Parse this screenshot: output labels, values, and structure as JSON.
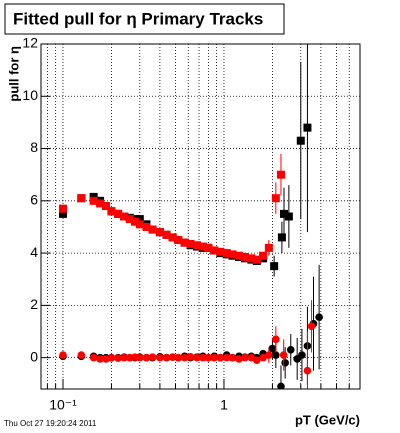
{
  "chart_data": {
    "type": "scatter",
    "title": "Fitted pull for η  Primary Tracks",
    "ylabel": "pull for η",
    "xlabel": "pT (GeV/c)",
    "footer": "Thu Oct 27 19:20:24 2011",
    "xscale": "log",
    "xlim": [
      0.073,
      7
    ],
    "ylim": [
      -1.2,
      12
    ],
    "xticks": [
      {
        "value": 0.1,
        "label": "10⁻¹"
      },
      1
    ],
    "xminor_ticks": [
      0.08,
      0.09,
      0.2,
      0.3,
      0.4,
      0.5,
      0.6,
      0.7,
      0.8,
      0.9,
      2,
      3,
      4,
      5,
      6,
      7
    ],
    "yticks": [
      0,
      2,
      4,
      6,
      8,
      10,
      12
    ],
    "grid": true,
    "series": [
      {
        "marker": "square",
        "color": "#000000",
        "x": [
          0.1,
          0.13,
          0.155,
          0.17,
          0.185,
          0.2,
          0.22,
          0.24,
          0.26,
          0.28,
          0.3,
          0.33,
          0.36,
          0.4,
          0.44,
          0.48,
          0.52,
          0.57,
          0.62,
          0.68,
          0.74,
          0.8,
          0.87,
          0.95,
          1.04,
          1.13,
          1.24,
          1.35,
          1.48,
          1.6,
          1.75,
          2.05,
          2.29,
          2.36,
          2.53,
          3.0,
          3.3
        ],
        "values": [
          5.5,
          6.1,
          6.15,
          6.0,
          5.8,
          5.6,
          5.5,
          5.4,
          5.35,
          5.3,
          5.3,
          5.1,
          4.9,
          4.8,
          4.7,
          4.6,
          4.5,
          4.4,
          4.3,
          4.25,
          4.2,
          4.2,
          4.1,
          4.0,
          3.95,
          3.9,
          3.85,
          3.8,
          3.75,
          3.7,
          3.8,
          3.5,
          4.6,
          5.5,
          5.4,
          8.3,
          8.8
        ],
        "errors": [
          0.1,
          0.1,
          0.1,
          0.1,
          0.1,
          0.1,
          0.1,
          0.1,
          0.1,
          0.1,
          0.1,
          0.1,
          0.1,
          0.1,
          0.1,
          0.1,
          0.1,
          0.1,
          0.1,
          0.1,
          0.1,
          0.1,
          0.1,
          0.1,
          0.1,
          0.1,
          0.1,
          0.1,
          0.1,
          0.1,
          0.1,
          0.4,
          0.6,
          1.0,
          1.2,
          3.0,
          4.0
        ]
      },
      {
        "marker": "square",
        "color": "#ff0000",
        "x": [
          0.1,
          0.13,
          0.155,
          0.17,
          0.185,
          0.2,
          0.22,
          0.24,
          0.26,
          0.28,
          0.3,
          0.33,
          0.36,
          0.4,
          0.44,
          0.48,
          0.52,
          0.57,
          0.62,
          0.68,
          0.74,
          0.8,
          0.87,
          0.95,
          1.04,
          1.13,
          1.24,
          1.35,
          1.48,
          1.6,
          1.75,
          1.9,
          2.1,
          2.26
        ],
        "values": [
          5.7,
          6.1,
          6.0,
          5.9,
          5.8,
          5.6,
          5.5,
          5.4,
          5.3,
          5.2,
          5.1,
          5.0,
          4.9,
          4.8,
          4.7,
          4.6,
          4.5,
          4.4,
          4.35,
          4.3,
          4.25,
          4.2,
          4.1,
          4.05,
          4.0,
          3.95,
          3.9,
          3.85,
          3.8,
          3.75,
          3.9,
          4.2,
          6.1,
          7.0
        ],
        "errors": [
          0.1,
          0.1,
          0.1,
          0.1,
          0.1,
          0.1,
          0.1,
          0.1,
          0.1,
          0.1,
          0.1,
          0.1,
          0.1,
          0.1,
          0.1,
          0.1,
          0.1,
          0.1,
          0.1,
          0.1,
          0.1,
          0.1,
          0.1,
          0.1,
          0.1,
          0.1,
          0.1,
          0.1,
          0.1,
          0.1,
          0.1,
          0.3,
          0.6,
          0.8
        ]
      },
      {
        "marker": "circle",
        "color": "#000000",
        "x": [
          0.1,
          0.13,
          0.155,
          0.17,
          0.185,
          0.2,
          0.22,
          0.24,
          0.26,
          0.28,
          0.3,
          0.33,
          0.36,
          0.4,
          0.44,
          0.48,
          0.52,
          0.57,
          0.62,
          0.68,
          0.74,
          0.8,
          0.87,
          0.95,
          1.04,
          1.13,
          1.24,
          1.35,
          1.48,
          1.6,
          1.75,
          2.0,
          2.1,
          2.26,
          2.4,
          2.6,
          2.85,
          3.05,
          3.3,
          3.6,
          3.9
        ],
        "values": [
          0.05,
          0.05,
          0.05,
          0,
          0,
          0,
          0,
          0.02,
          0,
          0,
          0.02,
          0,
          0,
          0.03,
          0,
          0.02,
          0,
          0.05,
          0,
          0.02,
          0.05,
          0,
          0.05,
          0,
          0.1,
          0,
          0.05,
          0.02,
          0.05,
          0,
          0.15,
          0.35,
          0.1,
          -1.1,
          -0.2,
          0.3,
          -0.05,
          0.1,
          0.45,
          1.3,
          1.55
        ],
        "errors": [
          0.05,
          0.05,
          0.05,
          0.05,
          0.05,
          0.05,
          0.05,
          0.05,
          0.05,
          0.05,
          0.05,
          0.05,
          0.05,
          0.05,
          0.05,
          0.05,
          0.05,
          0.05,
          0.05,
          0.05,
          0.05,
          0.05,
          0.05,
          0.05,
          0.05,
          0.05,
          0.05,
          0.05,
          0.05,
          0.05,
          0.05,
          0.4,
          0.5,
          0.8,
          0.6,
          0.6,
          0.8,
          1.0,
          1.5,
          1.8,
          2.0
        ]
      },
      {
        "marker": "circle",
        "color": "#ff0000",
        "x": [
          0.1,
          0.13,
          0.155,
          0.17,
          0.185,
          0.2,
          0.22,
          0.24,
          0.26,
          0.28,
          0.3,
          0.33,
          0.36,
          0.4,
          0.44,
          0.48,
          0.52,
          0.57,
          0.62,
          0.68,
          0.74,
          0.8,
          0.87,
          0.95,
          1.04,
          1.13,
          1.24,
          1.35,
          1.48,
          1.6,
          1.75,
          1.9,
          2.1,
          2.35,
          3.3,
          3.5
        ],
        "values": [
          0.1,
          0.1,
          0,
          -0.05,
          -0.05,
          0,
          -0.02,
          0,
          0,
          0.02,
          0,
          0,
          0.02,
          0,
          0,
          0.02,
          0,
          0,
          0.03,
          0,
          0,
          0,
          0,
          0,
          0,
          0,
          -0.05,
          0,
          0,
          -0.1,
          0,
          0.1,
          0.7,
          0.1,
          -0.5,
          1.2
        ],
        "errors": [
          0.05,
          0.05,
          0.05,
          0.05,
          0.05,
          0.05,
          0.05,
          0.05,
          0.05,
          0.05,
          0.05,
          0.05,
          0.05,
          0.05,
          0.05,
          0.05,
          0.05,
          0.05,
          0.05,
          0.05,
          0.05,
          0.05,
          0.05,
          0.05,
          0.05,
          0.05,
          0.05,
          0.05,
          0.05,
          0.05,
          0.05,
          0.3,
          0.5,
          0.6,
          1.5,
          1.0
        ]
      }
    ]
  }
}
